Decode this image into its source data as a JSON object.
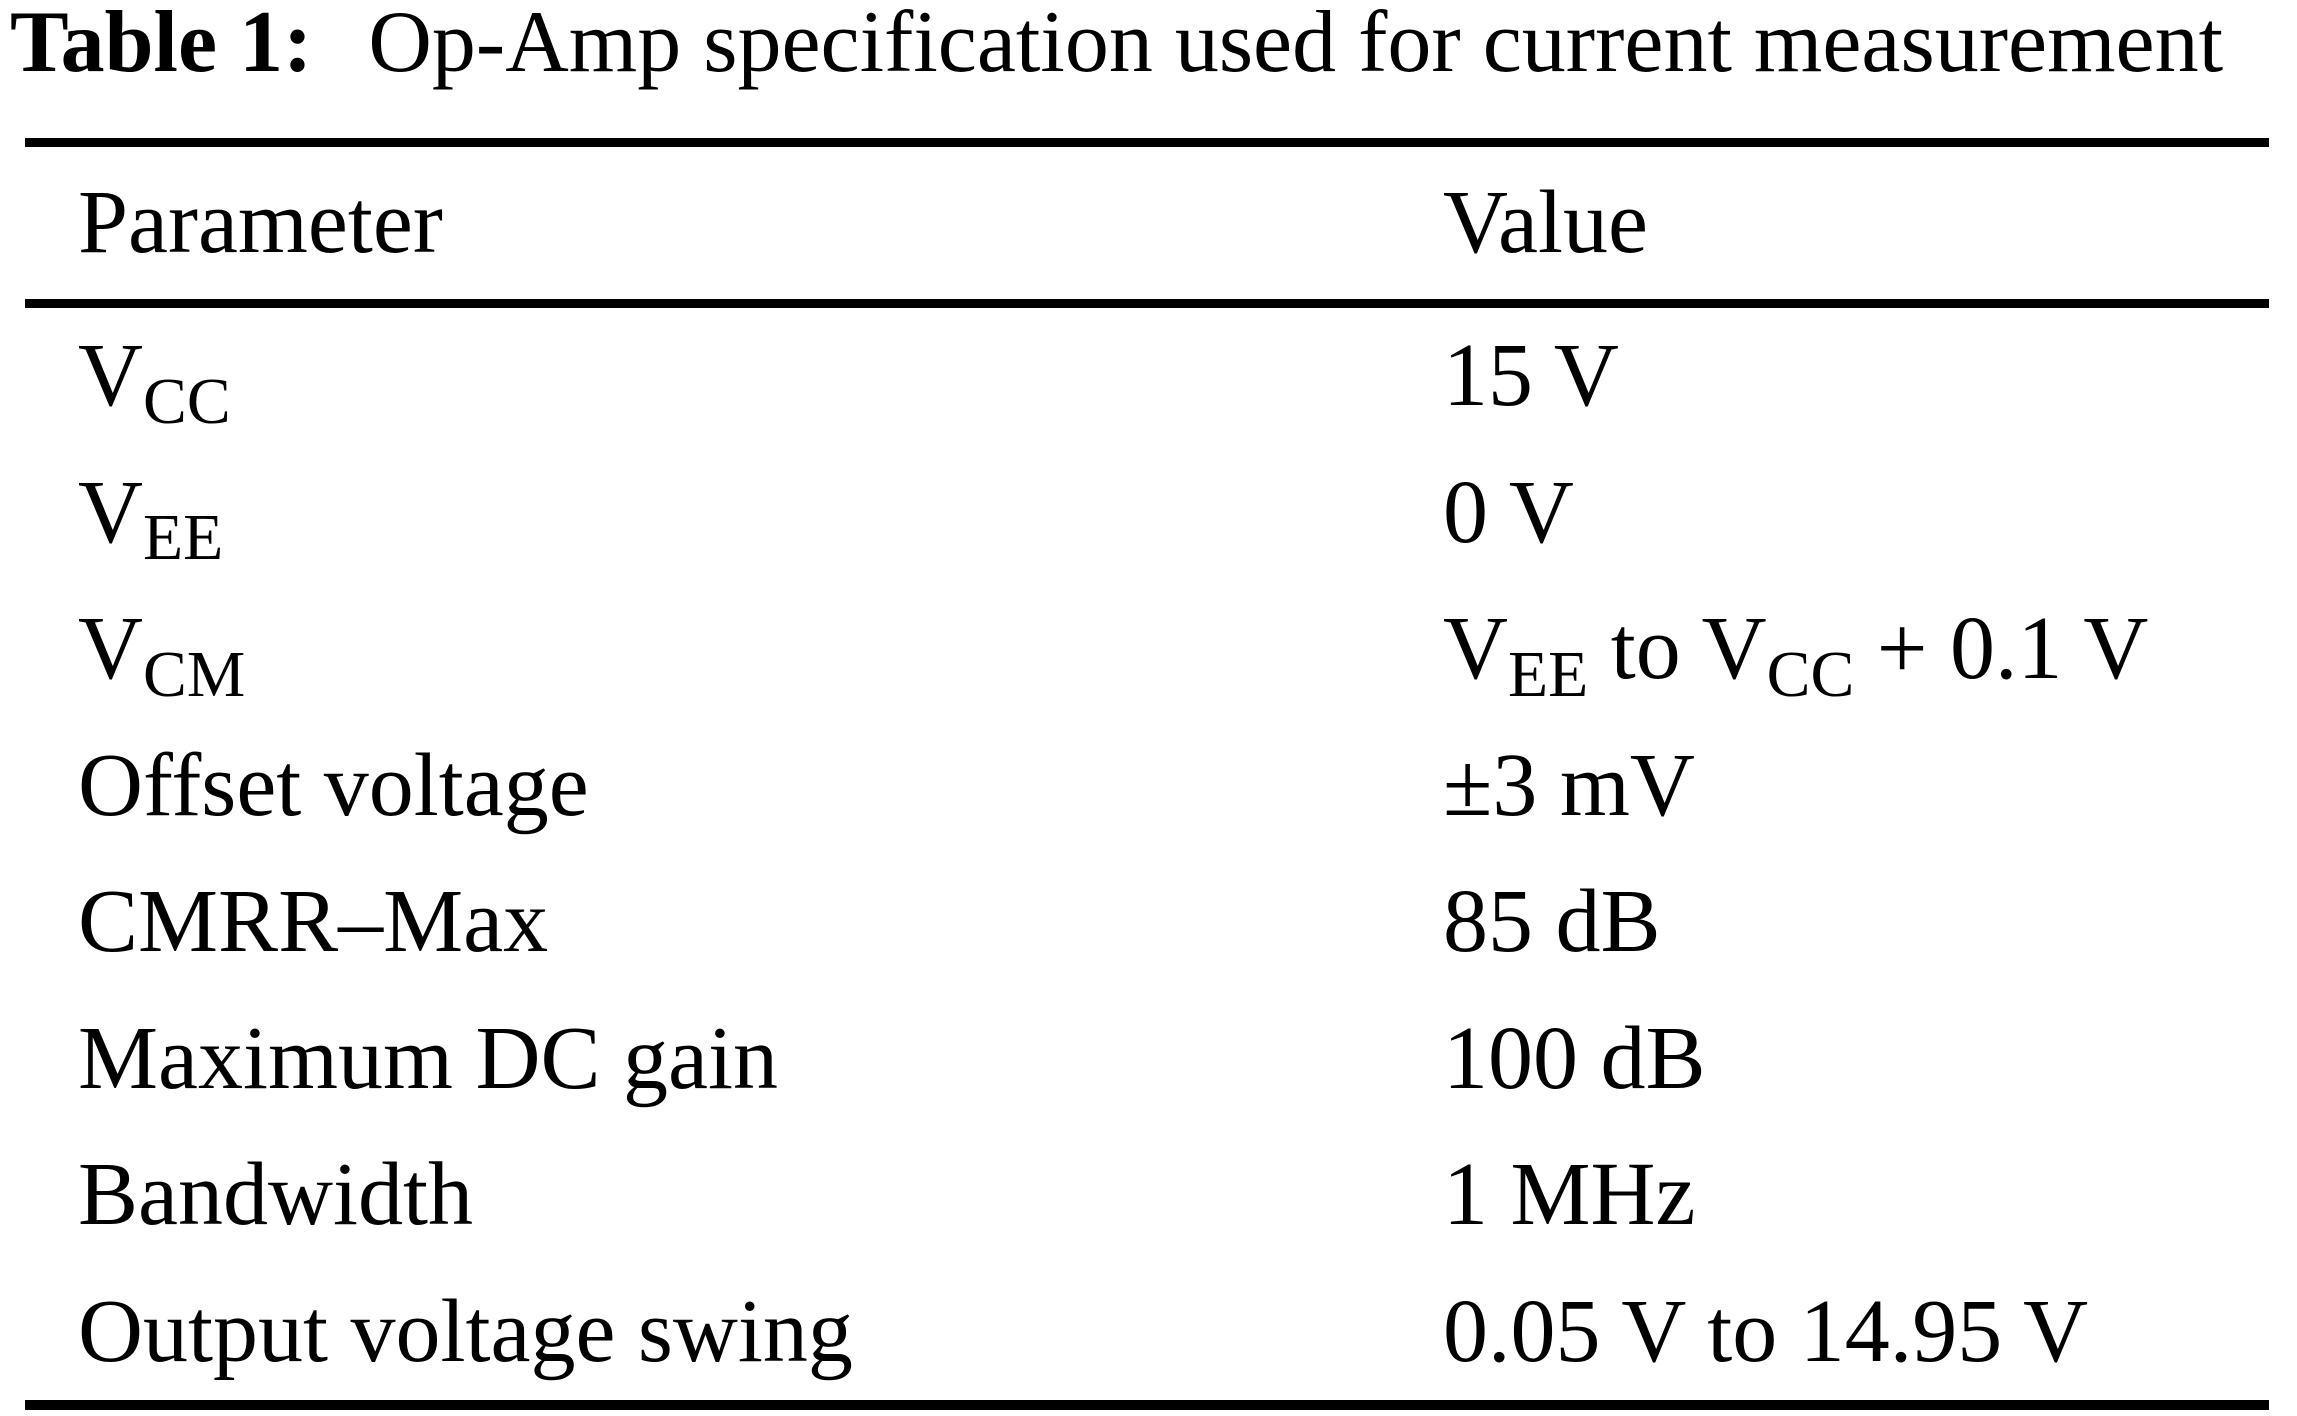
{
  "caption": {
    "label": "Table 1:",
    "text": "Op-Amp specification used for current measurement"
  },
  "table": {
    "columns": [
      "Parameter",
      "Value"
    ],
    "rows": [
      {
        "param": [
          {
            "t": "V"
          },
          {
            "s": "CC"
          }
        ],
        "value": [
          {
            "t": "15 V"
          }
        ]
      },
      {
        "param": [
          {
            "t": "V"
          },
          {
            "s": "EE"
          }
        ],
        "value": [
          {
            "t": "0 V"
          }
        ]
      },
      {
        "param": [
          {
            "t": "V"
          },
          {
            "s": "CM"
          }
        ],
        "value": [
          {
            "t": "V"
          },
          {
            "s": "EE"
          },
          {
            "t": " to V"
          },
          {
            "s": "CC"
          },
          {
            "t": " + 0.1 V"
          }
        ]
      },
      {
        "param": [
          {
            "t": "Offset voltage"
          }
        ],
        "value": [
          {
            "t": "±3 mV"
          }
        ]
      },
      {
        "param": [
          {
            "t": "CMRR–Max"
          }
        ],
        "value": [
          {
            "t": "85 dB"
          }
        ]
      },
      {
        "param": [
          {
            "t": "Maximum DC gain"
          }
        ],
        "value": [
          {
            "t": "100 dB"
          }
        ]
      },
      {
        "param": [
          {
            "t": "Bandwidth"
          }
        ],
        "value": [
          {
            "t": "1 MHz"
          }
        ]
      },
      {
        "param": [
          {
            "t": "Output voltage swing"
          }
        ],
        "value": [
          {
            "t": "0.05 V to 14.95 V"
          }
        ]
      }
    ]
  },
  "colors": {
    "text": "#000000",
    "background": "#ffffff",
    "rule": "#000000"
  }
}
